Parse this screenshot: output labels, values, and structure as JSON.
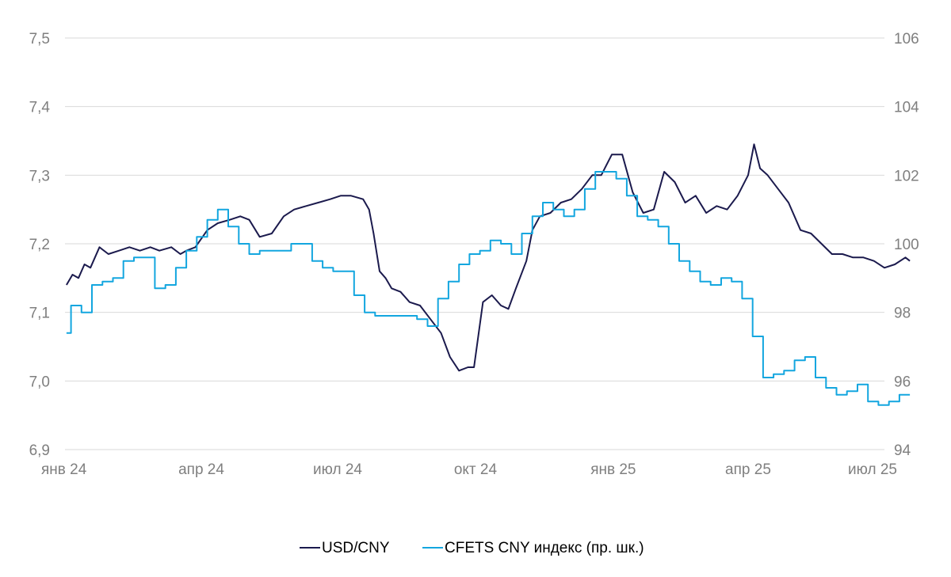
{
  "chart_data": {
    "type": "line",
    "title": "",
    "xlabel": "",
    "ylabel": "",
    "x_ticks": [
      "янв 24",
      "апр 24",
      "июл 24",
      "окт 24",
      "янв 25",
      "апр 25",
      "июл 25"
    ],
    "ylim_left": [
      6.9,
      7.5
    ],
    "ylim_right": [
      94,
      106
    ],
    "y_ticks_left": [
      "6,9",
      "7,0",
      "7,1",
      "7,2",
      "7,3",
      "7,4",
      "7,5"
    ],
    "y_ticks_right": [
      "94",
      "96",
      "98",
      "100",
      "102",
      "104",
      "106"
    ],
    "grid": true,
    "legend_position": "bottom",
    "colors": {
      "usd_cny": "#1b1a4d",
      "cfets": "#13a6df"
    },
    "series": [
      {
        "name": "USD/CNY",
        "axis": "left",
        "x_dates": [
          "2024-01-02",
          "2024-01-06",
          "2024-01-10",
          "2024-01-14",
          "2024-01-18",
          "2024-01-24",
          "2024-01-30",
          "2024-02-06",
          "2024-02-13",
          "2024-02-20",
          "2024-02-27",
          "2024-03-04",
          "2024-03-12",
          "2024-03-18",
          "2024-03-22",
          "2024-03-28",
          "2024-04-05",
          "2024-04-12",
          "2024-04-20",
          "2024-04-27",
          "2024-05-03",
          "2024-05-10",
          "2024-05-18",
          "2024-05-26",
          "2024-06-02",
          "2024-06-10",
          "2024-06-18",
          "2024-06-26",
          "2024-07-03",
          "2024-07-10",
          "2024-07-18",
          "2024-07-22",
          "2024-07-25",
          "2024-07-29",
          "2024-08-02",
          "2024-08-06",
          "2024-08-12",
          "2024-08-18",
          "2024-08-25",
          "2024-09-01",
          "2024-09-08",
          "2024-09-14",
          "2024-09-20",
          "2024-09-26",
          "2024-09-30",
          "2024-10-06",
          "2024-10-12",
          "2024-10-18",
          "2024-10-23",
          "2024-10-28",
          "2024-11-04",
          "2024-11-08",
          "2024-11-13",
          "2024-11-20",
          "2024-11-27",
          "2024-12-04",
          "2024-12-11",
          "2024-12-18",
          "2024-12-24",
          "2024-12-31",
          "2025-01-07",
          "2025-01-14",
          "2025-01-21",
          "2025-01-28",
          "2025-02-04",
          "2025-02-11",
          "2025-02-18",
          "2025-02-25",
          "2025-03-04",
          "2025-03-11",
          "2025-03-18",
          "2025-03-25",
          "2025-04-01",
          "2025-04-05",
          "2025-04-09",
          "2025-04-14",
          "2025-04-21",
          "2025-04-28",
          "2025-05-06",
          "2025-05-13",
          "2025-05-20",
          "2025-05-27",
          "2025-06-03",
          "2025-06-10",
          "2025-06-17",
          "2025-06-24",
          "2025-07-01",
          "2025-07-08",
          "2025-07-15",
          "2025-07-18"
        ],
        "values": [
          7.14,
          7.155,
          7.15,
          7.17,
          7.165,
          7.195,
          7.185,
          7.19,
          7.195,
          7.19,
          7.195,
          7.19,
          7.195,
          7.185,
          7.19,
          7.195,
          7.22,
          7.23,
          7.235,
          7.24,
          7.235,
          7.21,
          7.215,
          7.24,
          7.25,
          7.255,
          7.26,
          7.265,
          7.27,
          7.27,
          7.265,
          7.25,
          7.215,
          7.16,
          7.15,
          7.135,
          7.13,
          7.115,
          7.11,
          7.09,
          7.07,
          7.035,
          7.015,
          7.02,
          7.02,
          7.115,
          7.125,
          7.11,
          7.105,
          7.135,
          7.175,
          7.22,
          7.24,
          7.245,
          7.26,
          7.265,
          7.28,
          7.3,
          7.3,
          7.33,
          7.33,
          7.275,
          7.245,
          7.25,
          7.305,
          7.29,
          7.26,
          7.27,
          7.245,
          7.255,
          7.25,
          7.27,
          7.3,
          7.345,
          7.31,
          7.3,
          7.28,
          7.26,
          7.22,
          7.215,
          7.2,
          7.185,
          7.185,
          7.18,
          7.18,
          7.175,
          7.165,
          7.17,
          7.18,
          7.175
        ]
      },
      {
        "name": "CFETS CNY индекс (пр. шк.)",
        "axis": "right",
        "x_dates": [
          "2024-01-02",
          "2024-01-05",
          "2024-01-12",
          "2024-01-19",
          "2024-01-26",
          "2024-02-02",
          "2024-02-09",
          "2024-02-16",
          "2024-02-23",
          "2024-03-01",
          "2024-03-08",
          "2024-03-15",
          "2024-03-22",
          "2024-03-29",
          "2024-04-05",
          "2024-04-12",
          "2024-04-19",
          "2024-04-26",
          "2024-05-03",
          "2024-05-10",
          "2024-05-17",
          "2024-05-24",
          "2024-05-31",
          "2024-06-07",
          "2024-06-14",
          "2024-06-21",
          "2024-06-28",
          "2024-07-05",
          "2024-07-12",
          "2024-07-19",
          "2024-07-26",
          "2024-08-02",
          "2024-08-09",
          "2024-08-16",
          "2024-08-23",
          "2024-08-30",
          "2024-09-06",
          "2024-09-13",
          "2024-09-20",
          "2024-09-27",
          "2024-10-04",
          "2024-10-11",
          "2024-10-18",
          "2024-10-25",
          "2024-11-01",
          "2024-11-08",
          "2024-11-15",
          "2024-11-22",
          "2024-11-29",
          "2024-12-06",
          "2024-12-13",
          "2024-12-20",
          "2024-12-27",
          "2025-01-03",
          "2025-01-10",
          "2025-01-17",
          "2025-01-24",
          "2025-01-31",
          "2025-02-07",
          "2025-02-14",
          "2025-02-21",
          "2025-02-28",
          "2025-03-07",
          "2025-03-14",
          "2025-03-21",
          "2025-03-28",
          "2025-04-04",
          "2025-04-11",
          "2025-04-18",
          "2025-04-25",
          "2025-05-02",
          "2025-05-09",
          "2025-05-16",
          "2025-05-23",
          "2025-05-30",
          "2025-06-06",
          "2025-06-13",
          "2025-06-20",
          "2025-06-27",
          "2025-07-04",
          "2025-07-11",
          "2025-07-18"
        ],
        "values": [
          97.4,
          98.2,
          98.0,
          98.8,
          98.9,
          99.0,
          99.5,
          99.6,
          99.6,
          98.7,
          98.8,
          99.3,
          99.8,
          100.2,
          100.7,
          101.0,
          100.5,
          100.0,
          99.7,
          99.8,
          99.8,
          99.8,
          100.0,
          100.0,
          99.5,
          99.3,
          99.2,
          99.2,
          98.5,
          98.0,
          97.9,
          97.9,
          97.9,
          97.9,
          97.8,
          97.6,
          98.4,
          98.9,
          99.4,
          99.7,
          99.8,
          100.1,
          100.0,
          99.7,
          100.3,
          100.8,
          101.2,
          101.0,
          100.8,
          101.0,
          101.6,
          102.1,
          102.1,
          101.9,
          101.4,
          100.8,
          100.7,
          100.5,
          100.0,
          99.5,
          99.2,
          98.9,
          98.8,
          99.0,
          98.9,
          98.4,
          97.3,
          96.1,
          96.2,
          96.3,
          96.6,
          96.7,
          96.1,
          95.8,
          95.6,
          95.7,
          95.9,
          95.4,
          95.3,
          95.4,
          95.6,
          95.6
        ]
      }
    ]
  }
}
